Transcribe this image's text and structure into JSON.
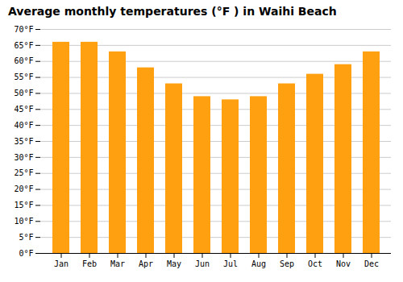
{
  "chart_data": {
    "type": "bar",
    "title": "Average monthly temperatures (°F ) in Waihi Beach",
    "categories": [
      "Jan",
      "Feb",
      "Mar",
      "Apr",
      "May",
      "Jun",
      "Jul",
      "Aug",
      "Sep",
      "Oct",
      "Nov",
      "Dec"
    ],
    "values": [
      66,
      66,
      63,
      58,
      53,
      49,
      48,
      49,
      53,
      56,
      59,
      63
    ],
    "color": "#FFA010",
    "ylim": [
      0,
      70
    ],
    "yticks": [
      {
        "value": 0,
        "label": "0°F"
      },
      {
        "value": 5,
        "label": "5°F"
      },
      {
        "value": 10,
        "label": "10°F"
      },
      {
        "value": 15,
        "label": "15°F"
      },
      {
        "value": 20,
        "label": "20°F"
      },
      {
        "value": 25,
        "label": "25°F"
      },
      {
        "value": 30,
        "label": "30°F"
      },
      {
        "value": 35,
        "label": "35°F"
      },
      {
        "value": 40,
        "label": "40°F"
      },
      {
        "value": 45,
        "label": "45°F"
      },
      {
        "value": 50,
        "label": "50°F"
      },
      {
        "value": 55,
        "label": "55°F"
      },
      {
        "value": 60,
        "label": "60°F"
      },
      {
        "value": 65,
        "label": "65°F"
      },
      {
        "value": 70,
        "label": "70°F"
      }
    ],
    "grid": true
  }
}
